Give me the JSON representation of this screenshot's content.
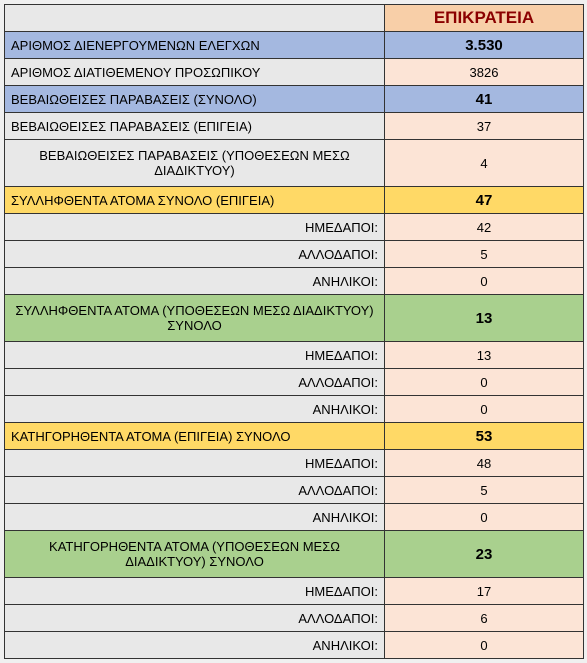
{
  "header": {
    "title": "ΕΠΙΚΡΑΤΕΙΑ"
  },
  "rows": [
    {
      "label": "ΑΡΙΘΜΟΣ ΔΙΕΝΕΡΓΟΥΜΕΝΩΝ ΕΛΕΓΧΩΝ",
      "value": "3.530",
      "labelBg": "bg-blue",
      "valBg": "bg-blue",
      "labelAlign": "label-left",
      "bold": true
    },
    {
      "label": "ΑΡΙΘΜΟΣ ΔΙΑΤΙΘΕΜΕΝΟΥ ΠΡΟΣΩΠΙΚΟΥ",
      "value": "3826",
      "labelBg": "bg-gray",
      "valBg": "bg-peach",
      "labelAlign": "label-left",
      "bold": false
    },
    {
      "label": "ΒΕΒΑΙΩΘΕΙΣΕΣ ΠΑΡΑΒΑΣΕΙΣ (ΣΥΝΟΛΟ)",
      "value": "41",
      "labelBg": "bg-blue",
      "valBg": "bg-blue",
      "labelAlign": "label-left",
      "bold": true
    },
    {
      "label": "ΒΕΒΑΙΩΘΕΙΣΕΣ ΠΑΡΑΒΑΣΕΙΣ (ΕΠΙΓΕΙΑ)",
      "value": "37",
      "labelBg": "bg-gray",
      "valBg": "bg-peach",
      "labelAlign": "label-left",
      "bold": false
    },
    {
      "label": "ΒΕΒΑΙΩΘΕΙΣΕΣ ΠΑΡΑΒΑΣΕΙΣ (ΥΠΟΘΕΣΕΩΝ ΜΕΣΩ ΔΙΑΔΙΚΤΥΟΥ)",
      "value": "4",
      "labelBg": "bg-gray",
      "valBg": "bg-peach",
      "labelAlign": "label-center",
      "bold": false,
      "tall": true
    },
    {
      "label": "ΣΥΛΛΗΦΘΕΝΤΑ ΑΤΟΜΑ ΣΥΝΟΛΟ (ΕΠΙΓΕΙΑ)",
      "value": "47",
      "labelBg": "bg-yellow",
      "valBg": "bg-yellow",
      "labelAlign": "label-left",
      "bold": true
    },
    {
      "label": "ΗΜΕΔΑΠΟΙ:",
      "value": "42",
      "labelBg": "bg-gray",
      "valBg": "bg-peach",
      "labelAlign": "label-right",
      "bold": false
    },
    {
      "label": "ΑΛΛΟΔΑΠΟΙ:",
      "value": "5",
      "labelBg": "bg-gray",
      "valBg": "bg-peach",
      "labelAlign": "label-right",
      "bold": false
    },
    {
      "label": "ΑΝΗΛΙΚΟΙ:",
      "value": "0",
      "labelBg": "bg-gray",
      "valBg": "bg-peach",
      "labelAlign": "label-right",
      "bold": false
    },
    {
      "label": "ΣΥΛΛΗΦΘΕΝΤΑ ΑΤΟΜΑ (ΥΠΟΘΕΣΕΩΝ ΜΕΣΩ ΔΙΑΔΙΚΤΥΟΥ) ΣΥΝΟΛΟ",
      "value": "13",
      "labelBg": "bg-green",
      "valBg": "bg-green",
      "labelAlign": "label-center",
      "bold": true,
      "tall": true
    },
    {
      "label": "ΗΜΕΔΑΠΟΙ:",
      "value": "13",
      "labelBg": "bg-gray",
      "valBg": "bg-peach",
      "labelAlign": "label-right",
      "bold": false
    },
    {
      "label": "ΑΛΛΟΔΑΠΟΙ:",
      "value": "0",
      "labelBg": "bg-gray",
      "valBg": "bg-peach",
      "labelAlign": "label-right",
      "bold": false
    },
    {
      "label": "ΑΝΗΛΙΚΟΙ:",
      "value": "0",
      "labelBg": "bg-gray",
      "valBg": "bg-peach",
      "labelAlign": "label-right",
      "bold": false
    },
    {
      "label": "ΚΑΤΗΓΟΡΗΘΕΝΤΑ ΑΤΟΜΑ (ΕΠΙΓΕΙΑ) ΣΥΝΟΛΟ",
      "value": "53",
      "labelBg": "bg-yellow",
      "valBg": "bg-yellow",
      "labelAlign": "label-left",
      "bold": true
    },
    {
      "label": "ΗΜΕΔΑΠΟΙ:",
      "value": "48",
      "labelBg": "bg-gray",
      "valBg": "bg-peach",
      "labelAlign": "label-right",
      "bold": false
    },
    {
      "label": "ΑΛΛΟΔΑΠΟΙ:",
      "value": "5",
      "labelBg": "bg-gray",
      "valBg": "bg-peach",
      "labelAlign": "label-right",
      "bold": false
    },
    {
      "label": "ΑΝΗΛΙΚΟΙ:",
      "value": "0",
      "labelBg": "bg-gray",
      "valBg": "bg-peach",
      "labelAlign": "label-right",
      "bold": false
    },
    {
      "label": "ΚΑΤΗΓΟΡΗΘΕΝΤΑ ΑΤΟΜΑ (ΥΠΟΘΕΣΕΩΝ ΜΕΣΩ ΔΙΑΔΙΚΤΥΟΥ) ΣΥΝΟΛΟ",
      "value": "23",
      "labelBg": "bg-green",
      "valBg": "bg-green",
      "labelAlign": "label-center",
      "bold": true,
      "tall": true
    },
    {
      "label": "ΗΜΕΔΑΠΟΙ:",
      "value": "17",
      "labelBg": "bg-gray",
      "valBg": "bg-peach",
      "labelAlign": "label-right",
      "bold": false
    },
    {
      "label": "ΑΛΛΟΔΑΠΟΙ:",
      "value": "6",
      "labelBg": "bg-gray",
      "valBg": "bg-peach",
      "labelAlign": "label-right",
      "bold": false
    },
    {
      "label": "ΑΝΗΛΙΚΟΙ:",
      "value": "0",
      "labelBg": "bg-gray",
      "valBg": "bg-peach",
      "labelAlign": "label-right",
      "bold": false
    }
  ]
}
